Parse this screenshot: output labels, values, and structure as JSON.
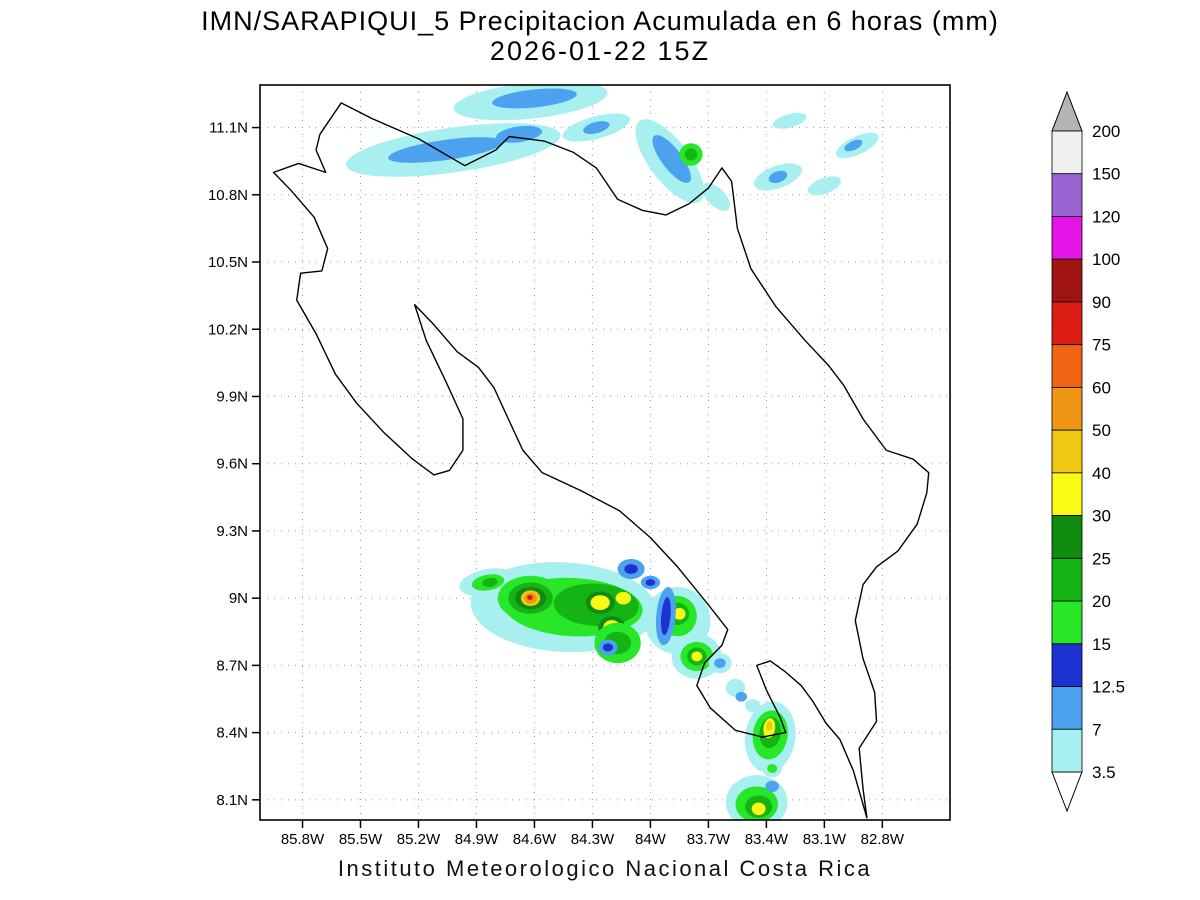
{
  "title": {
    "line1": "IMN/SARAPIQUI_5 Precipitacion Acumulada en 6 horas (mm)",
    "line2": "2026-01-22 15Z"
  },
  "footer": {
    "text": "Instituto Meteorologico Nacional Costa Rica"
  },
  "chart_data": {
    "type": "filled-contour-map",
    "title": "IMN/SARAPIQUI_5 Precipitacion Acumulada en 6 horas (mm)",
    "subtitle": "2026-01-22 15Z",
    "units": "mm (6-hour accumulated precipitation)",
    "region": "Costa Rica",
    "grid": "dotted",
    "map_extent": {
      "lon_west": 86.02,
      "lon_east": 82.45,
      "lat_north": 11.29,
      "lat_south": 8.01
    },
    "x_axis": {
      "tick_labels": [
        "85.8W",
        "85.5W",
        "85.2W",
        "84.9W",
        "84.6W",
        "84.3W",
        "84W",
        "83.7W",
        "83.4W",
        "83.1W",
        "82.8W"
      ],
      "tick_lons": [
        85.8,
        85.5,
        85.2,
        84.9,
        84.6,
        84.3,
        84.0,
        83.7,
        83.4,
        83.1,
        82.8
      ]
    },
    "y_axis": {
      "tick_labels": [
        "11.1N",
        "10.8N",
        "10.5N",
        "10.2N",
        "9.9N",
        "9.6N",
        "9.3N",
        "9N",
        "8.7N",
        "8.4N",
        "8.1N"
      ],
      "tick_lats": [
        11.1,
        10.8,
        10.5,
        10.2,
        9.9,
        9.6,
        9.3,
        9.0,
        8.7,
        8.4,
        8.1
      ]
    },
    "colorbar": {
      "labels_top_to_bottom": [
        "200",
        "150",
        "120",
        "100",
        "90",
        "75",
        "60",
        "50",
        "40",
        "30",
        "25",
        "20",
        "15",
        "12.5",
        "7",
        "3.5"
      ],
      "segment_colors_top_to_bottom": [
        "#f0f0f0",
        "#9c64d2",
        "#e614e6",
        "#a01414",
        "#dc1e14",
        "#f06414",
        "#f09614",
        "#f0c814",
        "#fafa14",
        "#0f8c0f",
        "#14b414",
        "#28e628",
        "#1e32d2",
        "#4da2f0",
        "#a8f0f0"
      ],
      "over_arrow_color": "#b4b4b4",
      "under_arrow_color": "#ffffff"
    },
    "palette": {
      "c": "#a8f0f0",
      "b": "#4da2f0",
      "db": "#1e32d2",
      "g1": "#28e628",
      "g2": "#14b414",
      "g3": "#0f8c0f",
      "y": "#fafa14",
      "gd": "#f0c814",
      "o": "#f09614",
      "r": "#dc1e14"
    },
    "level_ranges_mm": {
      "c": "3.5-7",
      "b": "7-12.5",
      "db": "12.5-15",
      "g1": "15-20",
      "g2": "20-25",
      "g3": "25-30",
      "y": "30-40",
      "gd": "40-50",
      "o": "50-60",
      "r": "75-90"
    },
    "coastline": [
      [
        [
          85.71,
          11.07
        ],
        [
          85.6,
          11.21
        ],
        [
          85.44,
          11.14
        ],
        [
          85.2,
          11.05
        ],
        [
          84.96,
          10.93
        ],
        [
          84.8,
          11.0
        ],
        [
          84.73,
          11.06
        ],
        [
          84.55,
          11.04
        ],
        [
          84.4,
          10.99
        ],
        [
          84.28,
          10.92
        ],
        [
          84.17,
          10.78
        ],
        [
          84.04,
          10.73
        ],
        [
          83.92,
          10.71
        ],
        [
          83.8,
          10.76
        ],
        [
          83.7,
          10.83
        ],
        [
          83.63,
          10.92
        ],
        [
          83.58,
          10.86
        ],
        [
          83.55,
          10.65
        ],
        [
          83.48,
          10.47
        ],
        [
          83.35,
          10.3
        ],
        [
          83.2,
          10.15
        ],
        [
          83.08,
          10.04
        ],
        [
          83.0,
          9.95
        ],
        [
          82.9,
          9.8
        ],
        [
          82.78,
          9.66
        ],
        [
          82.64,
          9.62
        ],
        [
          82.56,
          9.56
        ],
        [
          82.57,
          9.47
        ],
        [
          82.62,
          9.33
        ],
        [
          82.72,
          9.21
        ],
        [
          82.83,
          9.14
        ],
        [
          82.9,
          9.06
        ],
        [
          82.94,
          8.9
        ],
        [
          82.9,
          8.73
        ],
        [
          82.84,
          8.58
        ],
        [
          82.83,
          8.45
        ],
        [
          82.92,
          8.33
        ],
        [
          82.9,
          8.15
        ],
        [
          82.88,
          8.02
        ],
        [
          82.95,
          8.23
        ],
        [
          83.02,
          8.37
        ],
        [
          83.09,
          8.44
        ],
        [
          83.16,
          8.54
        ],
        [
          83.22,
          8.61
        ],
        [
          83.3,
          8.67
        ],
        [
          83.38,
          8.72
        ],
        [
          83.45,
          8.7
        ],
        [
          83.4,
          8.59
        ],
        [
          83.33,
          8.47
        ],
        [
          83.3,
          8.4
        ],
        [
          83.42,
          8.38
        ],
        [
          83.56,
          8.41
        ],
        [
          83.69,
          8.51
        ],
        [
          83.76,
          8.61
        ],
        [
          83.72,
          8.71
        ],
        [
          83.63,
          8.79
        ],
        [
          83.6,
          8.86
        ],
        [
          83.7,
          8.97
        ],
        [
          83.86,
          9.14
        ],
        [
          84.0,
          9.27
        ],
        [
          84.16,
          9.39
        ],
        [
          84.36,
          9.48
        ],
        [
          84.56,
          9.56
        ],
        [
          84.66,
          9.66
        ],
        [
          84.73,
          9.79
        ],
        [
          84.81,
          9.94
        ],
        [
          84.89,
          10.03
        ],
        [
          85.0,
          10.1
        ],
        [
          85.12,
          10.22
        ],
        [
          85.22,
          10.31
        ],
        [
          85.16,
          10.15
        ],
        [
          85.06,
          9.97
        ],
        [
          84.97,
          9.8
        ],
        [
          84.97,
          9.66
        ],
        [
          85.04,
          9.57
        ],
        [
          85.12,
          9.55
        ],
        [
          85.23,
          9.62
        ],
        [
          85.38,
          9.74
        ],
        [
          85.52,
          9.87
        ],
        [
          85.63,
          10.0
        ],
        [
          85.73,
          10.18
        ],
        [
          85.83,
          10.33
        ],
        [
          85.81,
          10.45
        ],
        [
          85.7,
          10.46
        ],
        [
          85.67,
          10.56
        ],
        [
          85.74,
          10.7
        ],
        [
          85.86,
          10.82
        ],
        [
          85.95,
          10.9
        ],
        [
          85.82,
          10.94
        ],
        [
          85.68,
          10.9
        ],
        [
          85.73,
          11.0
        ],
        [
          85.71,
          11.07
        ]
      ]
    ],
    "precip_blobs": [
      [
        85.02,
        11.0,
        0.56,
        0.1,
        -8,
        "c"
      ],
      [
        85.38,
        10.95,
        0.14,
        0.05,
        -20,
        "c"
      ],
      [
        85.06,
        11.0,
        0.3,
        0.045,
        -8,
        "b"
      ],
      [
        84.68,
        11.07,
        0.12,
        0.035,
        -8,
        "b"
      ],
      [
        84.62,
        11.22,
        0.4,
        0.08,
        -6,
        "c"
      ],
      [
        84.6,
        11.23,
        0.22,
        0.04,
        -6,
        "b"
      ],
      [
        84.28,
        11.1,
        0.18,
        0.05,
        -15,
        "c"
      ],
      [
        84.28,
        11.1,
        0.07,
        0.025,
        -15,
        "b"
      ],
      [
        83.9,
        10.95,
        0.26,
        0.09,
        53,
        "c"
      ],
      [
        83.89,
        10.96,
        0.15,
        0.045,
        53,
        "b"
      ],
      [
        83.79,
        10.98,
        0.06,
        0.05,
        0,
        "g1"
      ],
      [
        83.79,
        10.98,
        0.032,
        0.027,
        0,
        "g2"
      ],
      [
        83.66,
        10.79,
        0.09,
        0.04,
        45,
        "c"
      ],
      [
        83.34,
        10.88,
        0.13,
        0.05,
        -20,
        "c"
      ],
      [
        83.34,
        10.88,
        0.05,
        0.025,
        -20,
        "b"
      ],
      [
        83.1,
        10.84,
        0.09,
        0.035,
        -20,
        "c"
      ],
      [
        82.93,
        11.02,
        0.12,
        0.04,
        -25,
        "c"
      ],
      [
        82.95,
        11.02,
        0.05,
        0.02,
        -25,
        "b"
      ],
      [
        83.28,
        11.13,
        0.09,
        0.03,
        -15,
        "c"
      ],
      [
        84.45,
        8.96,
        0.48,
        0.2,
        3,
        "c"
      ],
      [
        84.84,
        9.07,
        0.15,
        0.06,
        -10,
        "c"
      ],
      [
        84.84,
        9.07,
        0.085,
        0.035,
        -10,
        "g1"
      ],
      [
        84.83,
        9.07,
        0.04,
        0.02,
        -10,
        "g2"
      ],
      [
        84.4,
        8.96,
        0.36,
        0.13,
        3,
        "g1"
      ],
      [
        84.62,
        9.0,
        0.17,
        0.1,
        0,
        "g1"
      ],
      [
        84.62,
        9.0,
        0.115,
        0.07,
        0,
        "g2"
      ],
      [
        84.62,
        9.0,
        0.08,
        0.05,
        0,
        "g3"
      ],
      [
        84.62,
        9.0,
        0.05,
        0.035,
        0,
        "gd"
      ],
      [
        84.62,
        9.0,
        0.032,
        0.024,
        0,
        "o"
      ],
      [
        84.623,
        9.003,
        0.015,
        0.011,
        0,
        "r"
      ],
      [
        84.28,
        8.97,
        0.22,
        0.095,
        3,
        "g2"
      ],
      [
        84.26,
        8.98,
        0.075,
        0.05,
        0,
        "g3"
      ],
      [
        84.2,
        8.87,
        0.07,
        0.05,
        0,
        "g3"
      ],
      [
        84.26,
        8.98,
        0.05,
        0.033,
        0,
        "y"
      ],
      [
        84.14,
        9.0,
        0.04,
        0.028,
        0,
        "y"
      ],
      [
        84.2,
        8.87,
        0.044,
        0.032,
        0,
        "y"
      ],
      [
        84.17,
        8.8,
        0.12,
        0.09,
        0,
        "g1"
      ],
      [
        84.17,
        8.8,
        0.07,
        0.05,
        0,
        "g2"
      ],
      [
        84.1,
        9.13,
        0.07,
        0.045,
        0,
        "b"
      ],
      [
        84.1,
        9.13,
        0.035,
        0.022,
        0,
        "db"
      ],
      [
        84.0,
        9.07,
        0.05,
        0.03,
        0,
        "b"
      ],
      [
        84.0,
        9.07,
        0.025,
        0.015,
        0,
        "db"
      ],
      [
        84.22,
        8.78,
        0.05,
        0.035,
        0,
        "b"
      ],
      [
        84.22,
        8.78,
        0.027,
        0.018,
        0,
        "db"
      ],
      [
        83.86,
        8.9,
        0.17,
        0.15,
        0,
        "c"
      ],
      [
        83.86,
        8.92,
        0.1,
        0.09,
        0,
        "g1"
      ],
      [
        83.86,
        8.93,
        0.06,
        0.05,
        0,
        "g2"
      ],
      [
        83.85,
        8.93,
        0.032,
        0.026,
        0,
        "y"
      ],
      [
        83.92,
        8.92,
        0.05,
        0.13,
        5,
        "b"
      ],
      [
        83.92,
        8.92,
        0.024,
        0.085,
        5,
        "db"
      ],
      [
        83.76,
        8.74,
        0.13,
        0.1,
        0,
        "c"
      ],
      [
        83.76,
        8.74,
        0.085,
        0.065,
        0,
        "g1"
      ],
      [
        83.76,
        8.74,
        0.05,
        0.04,
        0,
        "g2"
      ],
      [
        83.76,
        8.74,
        0.028,
        0.022,
        0,
        "y"
      ],
      [
        83.64,
        8.71,
        0.06,
        0.045,
        0,
        "c"
      ],
      [
        83.64,
        8.71,
        0.03,
        0.022,
        0,
        "b"
      ],
      [
        83.56,
        8.6,
        0.05,
        0.04,
        0,
        "c"
      ],
      [
        83.53,
        8.56,
        0.03,
        0.022,
        0,
        "b"
      ],
      [
        83.47,
        8.52,
        0.04,
        0.03,
        0,
        "c"
      ],
      [
        83.38,
        8.38,
        0.13,
        0.16,
        8,
        "c"
      ],
      [
        83.38,
        8.39,
        0.09,
        0.11,
        8,
        "g1"
      ],
      [
        83.38,
        8.4,
        0.055,
        0.07,
        8,
        "g2"
      ],
      [
        83.385,
        8.42,
        0.03,
        0.045,
        8,
        "y"
      ],
      [
        83.385,
        8.43,
        0.016,
        0.022,
        8,
        "gd"
      ],
      [
        83.37,
        8.24,
        0.05,
        0.04,
        0,
        "c"
      ],
      [
        83.37,
        8.24,
        0.026,
        0.02,
        0,
        "g1"
      ],
      [
        83.45,
        8.09,
        0.16,
        0.12,
        0,
        "c"
      ],
      [
        83.45,
        8.08,
        0.11,
        0.08,
        0,
        "g1"
      ],
      [
        83.44,
        8.07,
        0.07,
        0.05,
        0,
        "g2"
      ],
      [
        83.44,
        8.06,
        0.036,
        0.028,
        0,
        "y"
      ],
      [
        83.37,
        8.16,
        0.035,
        0.025,
        0,
        "b"
      ]
    ]
  }
}
